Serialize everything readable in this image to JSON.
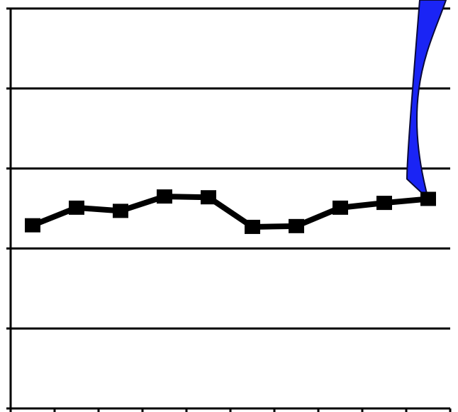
{
  "chart_data": {
    "type": "line",
    "title": "",
    "xlabel": "",
    "ylabel": "",
    "x": [
      1,
      2,
      3,
      4,
      5,
      6,
      7,
      8,
      9,
      10
    ],
    "xlim": [
      0.5,
      10.5
    ],
    "ylim": [
      0,
      5
    ],
    "grid": true,
    "legend": "none",
    "series": [
      {
        "values": [
          2.29,
          2.51,
          2.47,
          2.65,
          2.64,
          2.27,
          2.28,
          2.51,
          2.57,
          2.62
        ]
      }
    ],
    "colors": {
      "line": "#000000",
      "ribbon": "#1a24f5",
      "ribbon_edge": "#0a0a3a",
      "grid": "#000000"
    }
  }
}
